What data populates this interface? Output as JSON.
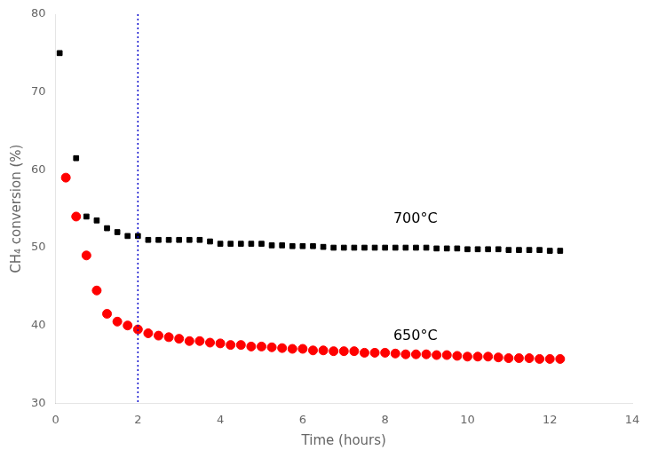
{
  "chart_data": {
    "type": "scatter",
    "x_label": "Time (hours)",
    "y_label": "CH₄ conversion (%)",
    "xlim": [
      0,
      14
    ],
    "ylim": [
      30,
      80
    ],
    "xticks": [
      0,
      2,
      4,
      6,
      8,
      10,
      12,
      14
    ],
    "yticks": [
      30,
      40,
      50,
      60,
      70,
      80
    ],
    "grid": false,
    "series": [
      {
        "color": "#000000",
        "marker": "square",
        "x": [
          0.1,
          0.5,
          0.75,
          1.0,
          1.25,
          1.5,
          1.75,
          2.0,
          2.25,
          2.5,
          2.75,
          3.0,
          3.25,
          3.5,
          3.75,
          4.0,
          4.25,
          4.5,
          4.75,
          5.0,
          5.25,
          5.5,
          5.75,
          6.0,
          6.25,
          6.5,
          6.75,
          7.0,
          7.25,
          7.5,
          7.75,
          8.0,
          8.25,
          8.5,
          8.75,
          9.0,
          9.25,
          9.5,
          9.75,
          10.0,
          10.25,
          10.5,
          10.75,
          11.0,
          11.25,
          11.5,
          11.75,
          12.0,
          12.25
        ],
        "y": [
          75.0,
          61.5,
          54.0,
          53.5,
          52.5,
          52.0,
          51.5,
          51.5,
          51.0,
          51.0,
          51.0,
          51.0,
          51.0,
          51.0,
          50.8,
          50.5,
          50.5,
          50.5,
          50.5,
          50.5,
          50.3,
          50.3,
          50.2,
          50.2,
          50.2,
          50.1,
          50.0,
          50.0,
          50.0,
          50.0,
          50.0,
          50.0,
          50.0,
          50.0,
          50.0,
          50.0,
          49.9,
          49.9,
          49.9,
          49.8,
          49.8,
          49.8,
          49.8,
          49.7,
          49.7,
          49.7,
          49.7,
          49.6,
          49.6
        ]
      },
      {
        "color": "#ff0000",
        "marker": "circle",
        "x": [
          0.25,
          0.5,
          0.75,
          1.0,
          1.25,
          1.5,
          1.75,
          2.0,
          2.25,
          2.5,
          2.75,
          3.0,
          3.25,
          3.5,
          3.75,
          4.0,
          4.25,
          4.5,
          4.75,
          5.0,
          5.25,
          5.5,
          5.75,
          6.0,
          6.25,
          6.5,
          6.75,
          7.0,
          7.25,
          7.5,
          7.75,
          8.0,
          8.25,
          8.5,
          8.75,
          9.0,
          9.25,
          9.5,
          9.75,
          10.0,
          10.25,
          10.5,
          10.75,
          11.0,
          11.25,
          11.5,
          11.75,
          12.0,
          12.25
        ],
        "y": [
          59.0,
          54.0,
          49.0,
          44.5,
          41.5,
          40.5,
          40.0,
          39.5,
          39.0,
          38.7,
          38.5,
          38.3,
          38.0,
          38.0,
          37.8,
          37.7,
          37.5,
          37.5,
          37.3,
          37.3,
          37.2,
          37.1,
          37.0,
          37.0,
          36.8,
          36.8,
          36.7,
          36.7,
          36.7,
          36.5,
          36.5,
          36.5,
          36.4,
          36.3,
          36.3,
          36.3,
          36.2,
          36.2,
          36.1,
          36.0,
          36.0,
          36.0,
          35.9,
          35.8,
          35.8,
          35.8,
          35.7,
          35.7,
          35.7
        ]
      }
    ],
    "vlines": [
      {
        "x": 2.0,
        "color": "#0000cd",
        "line_style": "dotted"
      }
    ],
    "annotations": [
      {
        "text": "700°C",
        "x": 8.2,
        "y": 53.2
      },
      {
        "text": "650°C",
        "x": 8.2,
        "y": 38.2
      }
    ]
  }
}
